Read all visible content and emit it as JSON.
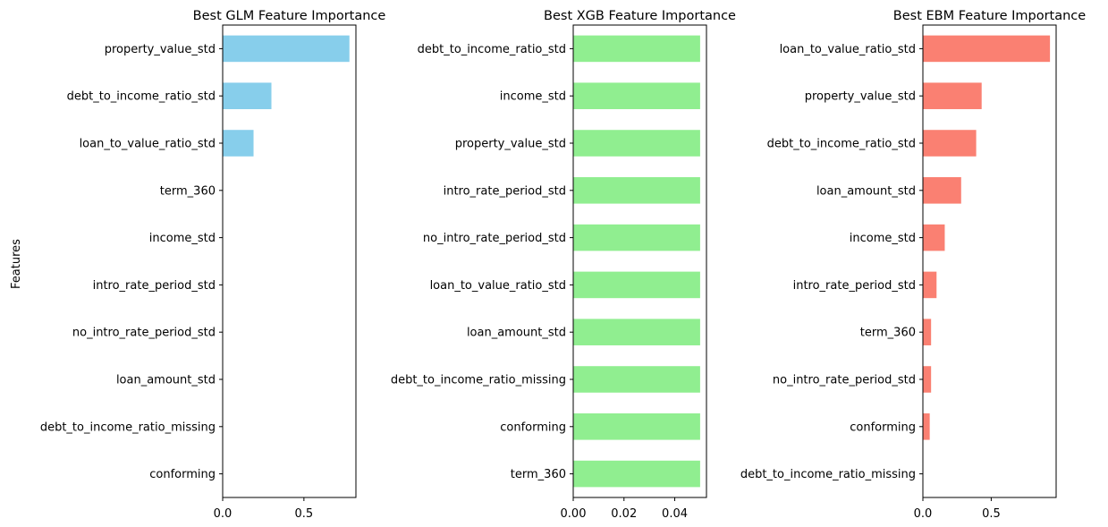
{
  "figure": {
    "ylabel": "Features"
  },
  "chart_data": [
    {
      "type": "bar",
      "orientation": "horizontal",
      "title": "Best GLM Feature Importance",
      "xlabel": "",
      "ylabel": "Features",
      "color": "#87CEEB",
      "xlim": [
        0,
        0.82
      ],
      "xticks": [
        0.0,
        0.5
      ],
      "xtick_labels": [
        "0.0",
        "0.5"
      ],
      "categories": [
        "property_value_std",
        "debt_to_income_ratio_std",
        "loan_to_value_ratio_std",
        "term_360",
        "income_std",
        "intro_rate_period_std",
        "no_intro_rate_period_std",
        "loan_amount_std",
        "debt_to_income_ratio_missing",
        "conforming"
      ],
      "values": [
        0.78,
        0.3,
        0.19,
        0.0,
        0.0,
        0.0,
        0.0,
        0.0,
        0.0,
        0.0
      ]
    },
    {
      "type": "bar",
      "orientation": "horizontal",
      "title": "Best XGB Feature Importance",
      "xlabel": "",
      "ylabel": "",
      "color": "#90EE90",
      "xlim": [
        0,
        0.0525
      ],
      "xticks": [
        0.0,
        0.02,
        0.04
      ],
      "xtick_labels": [
        "0.00",
        "0.02",
        "0.04"
      ],
      "categories": [
        "debt_to_income_ratio_std",
        "income_std",
        "property_value_std",
        "intro_rate_period_std",
        "no_intro_rate_period_std",
        "loan_to_value_ratio_std",
        "loan_amount_std",
        "debt_to_income_ratio_missing",
        "conforming",
        "term_360"
      ],
      "values": [
        0.05,
        0.05,
        0.05,
        0.05,
        0.05,
        0.05,
        0.05,
        0.05,
        0.05,
        0.05
      ]
    },
    {
      "type": "bar",
      "orientation": "horizontal",
      "title": "Best EBM Feature Importance",
      "xlabel": "",
      "ylabel": "",
      "color": "#FA8072",
      "xlim": [
        0,
        0.975
      ],
      "xticks": [
        0.0,
        0.5
      ],
      "xtick_labels": [
        "0.0",
        "0.5"
      ],
      "categories": [
        "loan_to_value_ratio_std",
        "property_value_std",
        "debt_to_income_ratio_std",
        "loan_amount_std",
        "income_std",
        "intro_rate_period_std",
        "term_360",
        "no_intro_rate_period_std",
        "conforming",
        "debt_to_income_ratio_missing"
      ],
      "values": [
        0.93,
        0.43,
        0.39,
        0.28,
        0.16,
        0.1,
        0.06,
        0.06,
        0.05,
        0.0
      ]
    }
  ]
}
